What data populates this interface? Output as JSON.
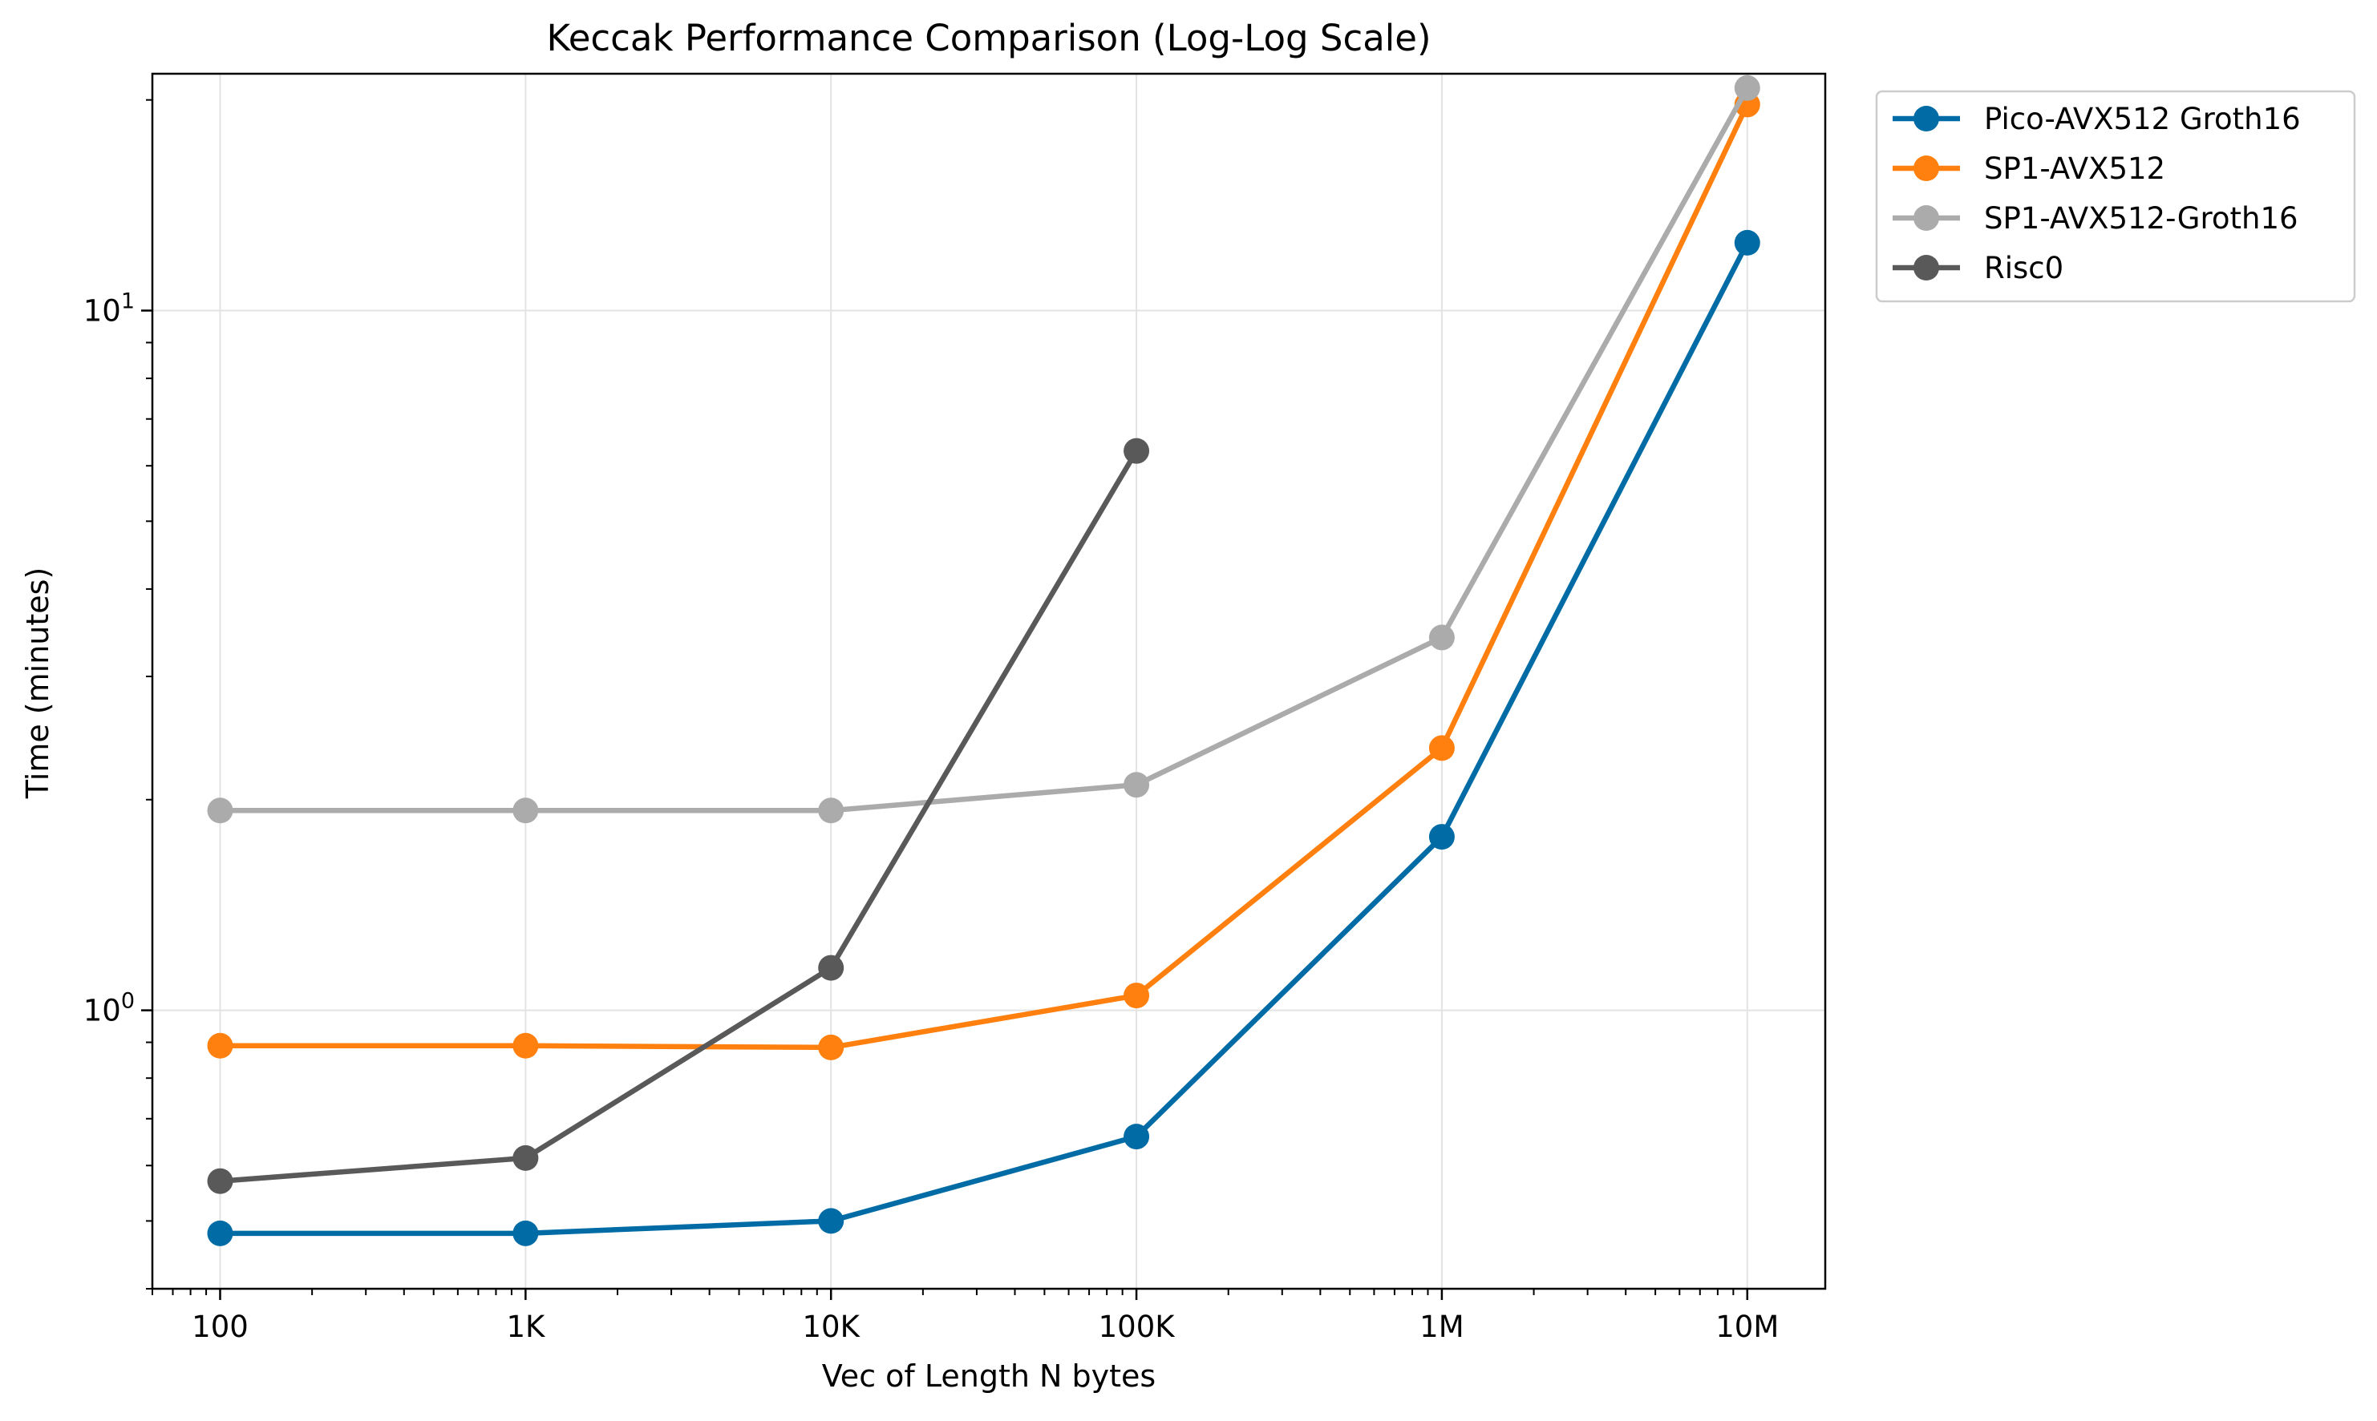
{
  "chart_data": {
    "type": "line",
    "title": "Keccak Performance Comparison (Log-Log Scale)",
    "xlabel": "Vec of Length N bytes",
    "ylabel": "Time (minutes)",
    "x_scale": "log",
    "y_scale": "log",
    "x": [
      100,
      1000,
      10000,
      100000,
      1000000,
      10000000
    ],
    "x_tick_labels": [
      "100",
      "1K",
      "10K",
      "100K",
      "1M",
      "10M"
    ],
    "y_ticks": [
      {
        "value": 1,
        "base": "10",
        "exponent": "0"
      },
      {
        "value": 10,
        "base": "10",
        "exponent": "1"
      }
    ],
    "xlim": [
      60,
      18000000
    ],
    "ylim": [
      0.4,
      21.8
    ],
    "grid": true,
    "legend_position": "outside-top-right",
    "series": [
      {
        "name": "Pico-AVX512 Groth16",
        "color": "#006ba4",
        "x": [
          100,
          1000,
          10000,
          100000,
          1000000,
          10000000
        ],
        "values": [
          0.48,
          0.48,
          0.5,
          0.66,
          1.77,
          12.5
        ]
      },
      {
        "name": "SP1-AVX512",
        "color": "#ff800e",
        "x": [
          100,
          1000,
          10000,
          100000,
          1000000,
          10000000
        ],
        "values": [
          0.89,
          0.89,
          0.885,
          1.05,
          2.37,
          19.7
        ]
      },
      {
        "name": "SP1-AVX512-Groth16",
        "color": "#ababab",
        "x": [
          100,
          1000,
          10000,
          100000,
          1000000,
          10000000
        ],
        "values": [
          1.93,
          1.93,
          1.93,
          2.1,
          3.41,
          20.8
        ]
      },
      {
        "name": "Risc0",
        "color": "#595959",
        "x": [
          100,
          1000,
          10000,
          100000
        ],
        "values": [
          0.57,
          0.615,
          1.15,
          6.3
        ]
      }
    ]
  }
}
